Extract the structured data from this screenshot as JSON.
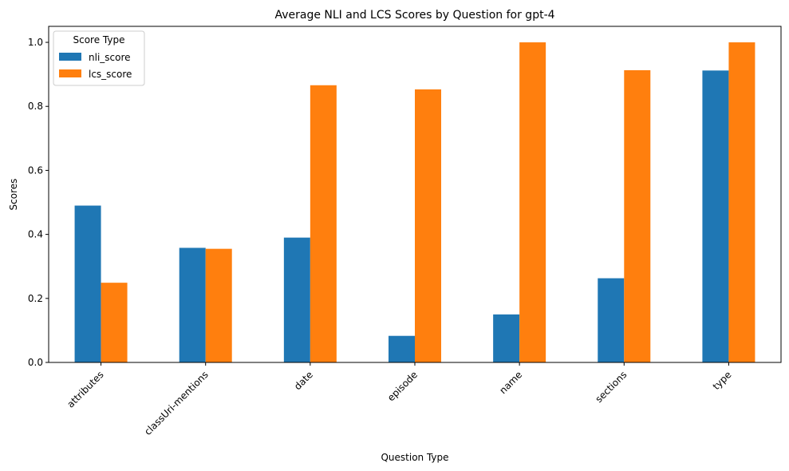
{
  "chart_data": {
    "type": "bar",
    "title": "Average NLI and LCS Scores by Question for gpt-4",
    "xlabel": "Question Type",
    "ylabel": "Scores",
    "categories": [
      "attributes",
      "classUri-mentions",
      "date",
      "episode",
      "name",
      "sections",
      "type"
    ],
    "series": [
      {
        "name": "nli_score",
        "color": "#1f77b4",
        "values": [
          0.49,
          0.358,
          0.39,
          0.083,
          0.15,
          0.263,
          0.912
        ]
      },
      {
        "name": "lcs_score",
        "color": "#ff7f0e",
        "values": [
          0.249,
          0.355,
          0.866,
          0.853,
          1.0,
          0.913,
          1.0
        ]
      }
    ],
    "ylim": [
      0,
      1.05
    ],
    "yticks": [
      "0.0",
      "0.2",
      "0.4",
      "0.6",
      "0.8",
      "1.0"
    ],
    "grid": false,
    "legend": {
      "title": "Score Type",
      "position": "top-left"
    }
  }
}
